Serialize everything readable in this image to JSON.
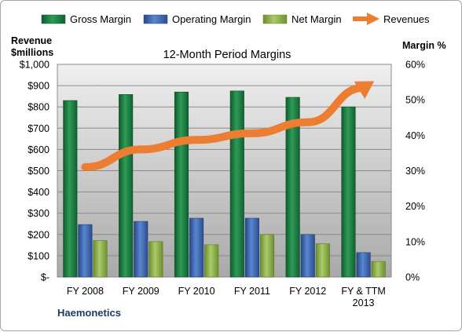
{
  "chart_data": {
    "type": "bar",
    "title": "12-Month Period Margins",
    "company": "Haemonetics",
    "y_left_label_line1": "Revenue",
    "y_left_label_line2": "$millions",
    "y_right_label": "Margin %",
    "categories": [
      [
        "FY 2008"
      ],
      [
        "FY 2009"
      ],
      [
        "FY 2010"
      ],
      [
        "FY 2011"
      ],
      [
        "FY 2012"
      ],
      [
        "FY & TTM",
        "2013"
      ]
    ],
    "ylim_left": [
      0,
      1000
    ],
    "ylim_right": [
      0,
      60
    ],
    "left_ticks": [
      "$-",
      "$100",
      "$200",
      "$300",
      "$400",
      "$500",
      "$600",
      "$700",
      "$800",
      "$900",
      "$1,000"
    ],
    "right_ticks": [
      "0%",
      "10%",
      "20%",
      "30%",
      "40%",
      "50%",
      "60%"
    ],
    "grid": true,
    "legend_position": "top",
    "series": [
      {
        "name": "Gross Margin",
        "axis": "right",
        "kind": "bar",
        "color": "#1e7a44",
        "values": [
          49.8,
          51.5,
          52.2,
          52.5,
          50.7,
          48.0
        ]
      },
      {
        "name": "Operating Margin",
        "axis": "right",
        "kind": "bar",
        "color": "#3d6ab0",
        "values": [
          14.8,
          15.7,
          16.6,
          16.6,
          12.0,
          6.9
        ]
      },
      {
        "name": "Net Margin",
        "axis": "right",
        "kind": "bar",
        "color": "#8fb24a",
        "values": [
          10.3,
          10.0,
          9.1,
          12.0,
          9.4,
          4.4
        ]
      },
      {
        "name": "Revenues",
        "axis": "left",
        "kind": "arrow-line",
        "color": "#ed7d31",
        "values": [
          517,
          600,
          645,
          676,
          728,
          890
        ]
      }
    ]
  }
}
